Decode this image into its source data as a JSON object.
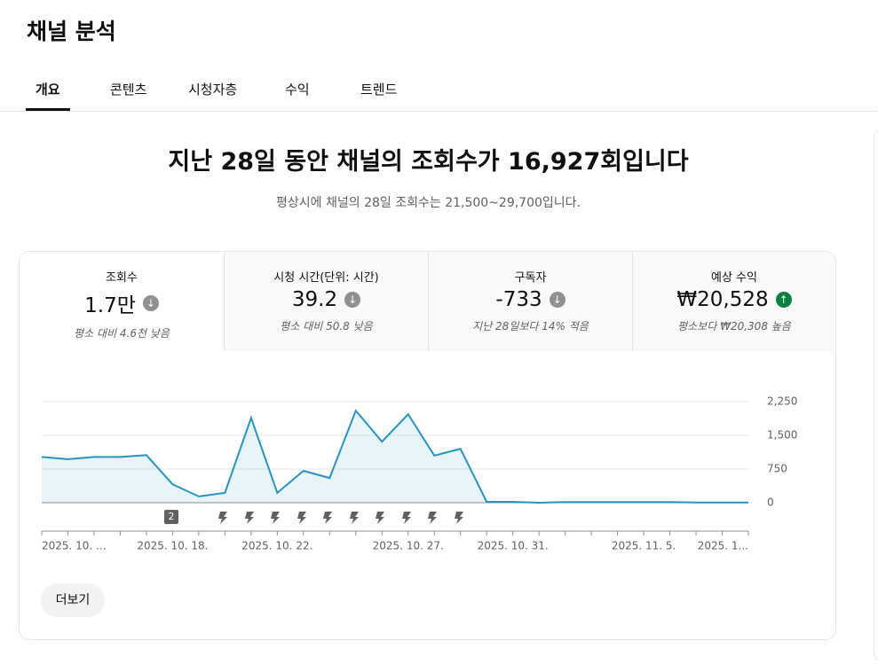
{
  "header": {
    "title": "채널 분석"
  },
  "tabs": [
    "개요",
    "콘텐츠",
    "시청자층",
    "수익",
    "트렌드"
  ],
  "headline": "지난 28일 동안 채널의 조회수가 16,927회입니다",
  "subheadline": "평상시에 채널의 28일 조회수는 21,500~29,700입니다.",
  "metrics": [
    {
      "label": "조회수",
      "value": "1.7만",
      "note": "평소 대비 4.6천 낮음"
    },
    {
      "label": "시청 시간(단위: 시간)",
      "value": "39.2",
      "note": "평소 대비 50.8 낮음"
    },
    {
      "label": "구독자",
      "value": "-733",
      "note": "지난 28일보다 14% 적음"
    },
    {
      "label": "예상 수익",
      "value": "₩20,528",
      "note": "평소보다 ₩20,308 높음"
    }
  ],
  "chart_data": {
    "type": "line",
    "categories": [
      "2025. 10. ...",
      null,
      null,
      null,
      null,
      "2025. 10. 18.",
      null,
      null,
      null,
      "2025. 10. 22.",
      null,
      null,
      null,
      null,
      "2025. 10. 27.",
      null,
      null,
      null,
      "2025. 10. 31.",
      null,
      null,
      null,
      null,
      "2025. 11. 5.",
      null,
      null,
      null,
      "2025. 1..."
    ],
    "series": [
      {
        "name": "조회수",
        "color": "#2793c0",
        "values": [
          1020,
          970,
          1020,
          1020,
          1060,
          410,
          140,
          220,
          1890,
          220,
          710,
          550,
          2050,
          1360,
          1970,
          1050,
          1200,
          20,
          20,
          0,
          15,
          15,
          15,
          15,
          15,
          5,
          5,
          5
        ]
      }
    ],
    "ylim": [
      0,
      2250
    ],
    "yticks": [
      0,
      750,
      {
        "value": 1500,
        "label": "1,500"
      },
      {
        "value": 2250,
        "label": "2,250"
      }
    ],
    "grid": true,
    "marker_label": "2"
  },
  "button": "더보기"
}
